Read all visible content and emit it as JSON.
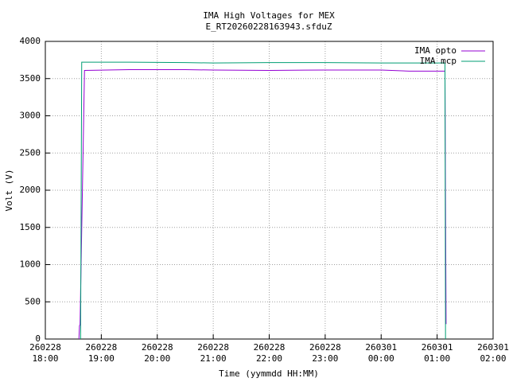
{
  "chart_data": {
    "type": "line",
    "title": "IMA High Voltages for MEX",
    "subtitle": "E_RT20260228163943.sfduZ",
    "x_label": "Time (yymmdd HH:MM)",
    "y_label": "Volt (V)",
    "xlim": [
      18,
      26
    ],
    "xticks": [
      {
        "value": 18,
        "label": "260228\n18:00"
      },
      {
        "value": 19,
        "label": "260228\n19:00"
      },
      {
        "value": 20,
        "label": "260228\n20:00"
      },
      {
        "value": 21,
        "label": "260228\n21:00"
      },
      {
        "value": 22,
        "label": "260228\n22:00"
      },
      {
        "value": 23,
        "label": "260228\n23:00"
      },
      {
        "value": 24,
        "label": "260301\n00:00"
      },
      {
        "value": 25,
        "label": "260301\n01:00"
      },
      {
        "value": 26,
        "label": "260301\n02:00"
      }
    ],
    "ylim": [
      0,
      4000
    ],
    "yticks": [
      0,
      500,
      1000,
      1500,
      2000,
      2500,
      3000,
      3500,
      4000
    ],
    "grid": true,
    "legend": "top-right",
    "series": [
      {
        "name": "IMA opto",
        "color": "#9400d3",
        "x": [
          18.6,
          18.61,
          18.62,
          18.7,
          19.5,
          20.5,
          21.0,
          22.0,
          23.0,
          24.0,
          24.5,
          25.14,
          25.16
        ],
        "values": [
          0,
          180,
          190,
          3610,
          3620,
          3620,
          3615,
          3610,
          3615,
          3615,
          3600,
          3600,
          200
        ]
      },
      {
        "name": "IMA mcp",
        "color": "#009e73",
        "x": [
          18.63,
          18.65,
          19.5,
          20.5,
          21.0,
          22.0,
          23.0,
          24.0,
          25.14,
          25.15
        ],
        "values": [
          0,
          3720,
          3720,
          3715,
          3710,
          3715,
          3715,
          3710,
          3710,
          0
        ]
      }
    ]
  }
}
